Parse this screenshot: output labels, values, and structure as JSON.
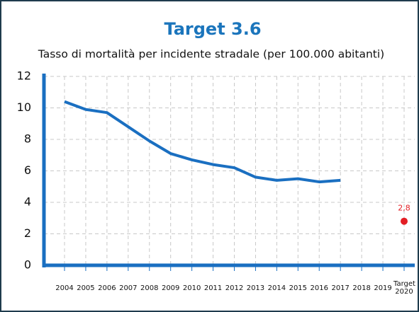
{
  "chart_data": {
    "type": "line",
    "title": "Target 3.6",
    "subtitle": "Tasso di mortalità per incidente stradale (per 100.000 abitanti)",
    "categories": [
      "2004",
      "2005",
      "2006",
      "2007",
      "2008",
      "2009",
      "2010",
      "2011",
      "2012",
      "2013",
      "2014",
      "2015",
      "2016",
      "2017",
      "2018",
      "2019",
      "Target 2020"
    ],
    "series": [
      {
        "color": "#1a6fc1",
        "values": [
          10.4,
          9.9,
          9.7,
          8.8,
          7.9,
          7.1,
          6.7,
          6.4,
          6.2,
          5.6,
          5.4,
          5.5,
          5.3,
          5.4,
          null,
          null,
          null
        ]
      },
      {
        "color": "#e31e24",
        "values": [
          null,
          null,
          null,
          null,
          null,
          null,
          null,
          null,
          null,
          null,
          null,
          null,
          null,
          null,
          null,
          null,
          2.8
        ],
        "value_labels": [
          null,
          null,
          null,
          null,
          null,
          null,
          null,
          null,
          null,
          null,
          null,
          null,
          null,
          null,
          null,
          null,
          "2,8"
        ]
      }
    ],
    "ylim": [
      0,
      12
    ],
    "yticks": [
      0,
      2,
      4,
      6,
      8,
      10,
      12
    ],
    "grid": true
  }
}
